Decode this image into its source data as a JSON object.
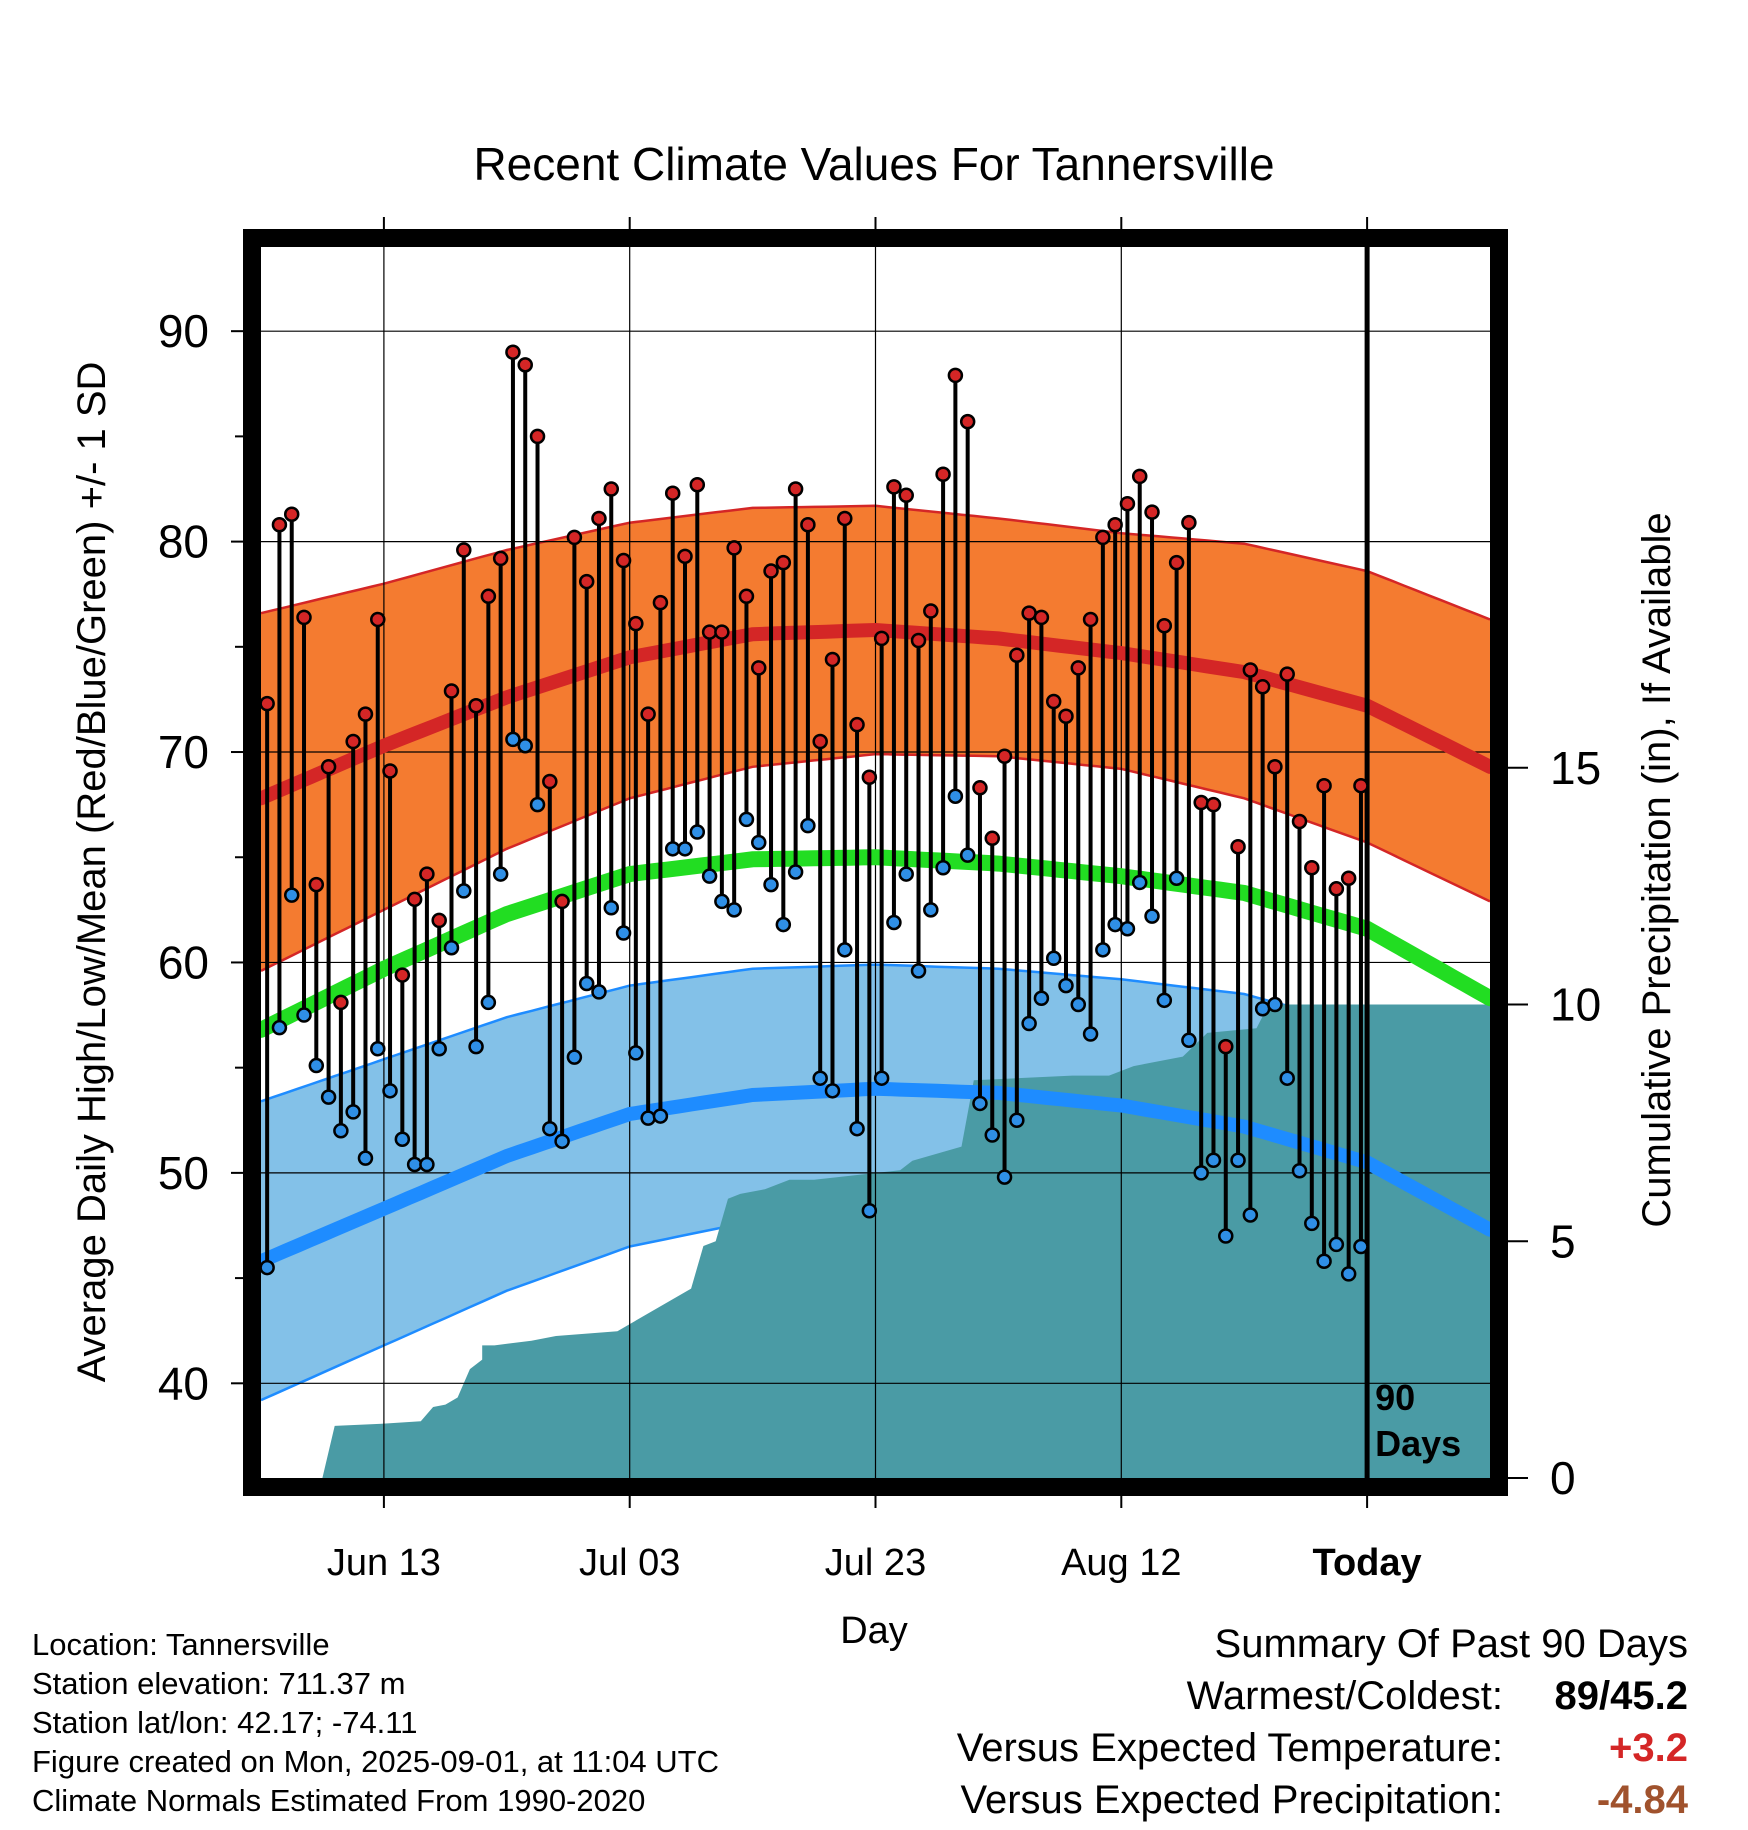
{
  "chart_data": {
    "type": "line",
    "title": "Recent Climate Values For Tannersville",
    "xlabel": "Day",
    "ylabel": "Average Daily High/Low/Mean (Red/Blue/Green) +/- 1 SD",
    "y2label": "Cumulative Precipitation (in), If Available",
    "x_tick_labels": [
      "Jun 13",
      "Jul 03",
      "Jul 23",
      "Aug 12",
      "Today"
    ],
    "y_ticks": [
      40,
      50,
      60,
      70,
      80,
      90
    ],
    "y2_ticks": [
      0,
      5,
      10,
      15
    ],
    "ylim": [
      35.5,
      94
    ],
    "y2lim": [
      0,
      26
    ],
    "today_marker_label": "90 Days",
    "grid": true,
    "colors": {
      "high_band": "#f47b30",
      "high_line": "#d42626",
      "low_band": "#83c1e8",
      "low_line": "#1e8cff",
      "mean_line": "#22dd22",
      "precip": "#4a9ba5",
      "high_dot": "#d42626",
      "low_dot": "#2f8fe6"
    },
    "x_day_range": [
      -90,
      10
    ],
    "normal_high": {
      "x": [
        -90,
        -80,
        -70,
        -60,
        -50,
        -40,
        -30,
        -20,
        -10,
        0,
        10
      ],
      "values": [
        67.8,
        70.3,
        72.6,
        74.5,
        75.6,
        75.8,
        75.4,
        74.7,
        73.8,
        72.2,
        69.3
      ]
    },
    "normal_high_upper": {
      "x": [
        -90,
        -80,
        -70,
        -60,
        -50,
        -40,
        -30,
        -20,
        -10,
        0,
        10
      ],
      "values": [
        76.6,
        78,
        79.6,
        80.9,
        81.6,
        81.7,
        81.1,
        80.4,
        79.9,
        78.6,
        76.3
      ]
    },
    "normal_high_lower": {
      "x": [
        -90,
        -80,
        -70,
        -60,
        -50,
        -40,
        -30,
        -20,
        -10,
        0,
        10
      ],
      "values": [
        59.6,
        62.5,
        65.4,
        67.8,
        69.3,
        69.9,
        69.8,
        69.2,
        67.8,
        65.7,
        62.9
      ]
    },
    "normal_mean": {
      "x": [
        -90,
        -80,
        -70,
        -60,
        -50,
        -40,
        -30,
        -20,
        -10,
        0,
        10
      ],
      "values": [
        56.8,
        59.7,
        62.3,
        64.2,
        64.9,
        65,
        64.7,
        64.1,
        63.3,
        61.6,
        58.3
      ]
    },
    "normal_low": {
      "x": [
        -90,
        -80,
        -70,
        -60,
        -50,
        -40,
        -30,
        -20,
        -10,
        0,
        10
      ],
      "values": [
        45.8,
        48.3,
        50.8,
        52.8,
        53.7,
        54,
        53.8,
        53.2,
        52.2,
        50.5,
        47.3
      ]
    },
    "normal_low_upper": {
      "x": [
        -90,
        -80,
        -70,
        -60,
        -50,
        -40,
        -30,
        -20,
        -10,
        0,
        10
      ],
      "values": [
        53.4,
        55.4,
        57.4,
        58.9,
        59.7,
        59.9,
        59.7,
        59.2,
        58.5,
        56.9,
        54.9
      ]
    },
    "normal_low_lower": {
      "x": [
        -90,
        -80,
        -70,
        -60,
        -50,
        -40,
        -30,
        -20,
        -10,
        0,
        10
      ],
      "values": [
        39.2,
        41.8,
        44.4,
        46.5,
        47.7,
        48.2,
        48.2,
        47.6,
        46.4,
        44.6,
        41.8
      ]
    },
    "daily_high": [
      72.3,
      80.8,
      81.3,
      76.4,
      63.7,
      69.3,
      58.1,
      70.5,
      71.8,
      76.3,
      69.1,
      59.4,
      63.0,
      64.2,
      62.0,
      72.9,
      79.6,
      72.2,
      77.4,
      79.2,
      89.0,
      88.4,
      85.0,
      68.6,
      62.9,
      80.2,
      78.1,
      81.1,
      82.5,
      79.1,
      76.1,
      71.8,
      77.1,
      82.3,
      79.3,
      82.7,
      75.7,
      75.7,
      79.7,
      77.4,
      74.0,
      78.6,
      79.0,
      82.5,
      80.8,
      70.5,
      74.4,
      81.1,
      71.3,
      68.8,
      75.4,
      82.6,
      82.2,
      75.3,
      76.7,
      83.2,
      87.9,
      85.7,
      68.3,
      65.9,
      69.8,
      74.6,
      76.6,
      76.4,
      72.4,
      71.7,
      74.0,
      76.3,
      80.2,
      80.8,
      81.8,
      83.1,
      81.4,
      76.0,
      79.0,
      80.9,
      67.6,
      67.5,
      56.0,
      65.5,
      73.9,
      73.1,
      69.3,
      73.7,
      66.7,
      64.5,
      68.4,
      63.5,
      64.0,
      68.4
    ],
    "daily_low": [
      45.5,
      56.9,
      63.2,
      57.5,
      55.1,
      53.6,
      52.0,
      52.9,
      50.7,
      55.9,
      53.9,
      51.6,
      50.4,
      50.4,
      55.9,
      60.7,
      63.4,
      56.0,
      58.1,
      64.2,
      70.6,
      70.3,
      67.5,
      52.1,
      51.5,
      55.5,
      59.0,
      58.6,
      62.6,
      61.4,
      55.7,
      52.6,
      52.7,
      65.4,
      65.4,
      66.2,
      64.1,
      62.9,
      62.5,
      66.8,
      65.7,
      63.7,
      61.8,
      64.3,
      66.5,
      54.5,
      53.9,
      60.6,
      52.1,
      48.2,
      54.5,
      61.9,
      64.2,
      59.6,
      62.5,
      64.5,
      67.9,
      65.1,
      53.3,
      51.8,
      49.8,
      52.5,
      57.1,
      58.3,
      60.2,
      58.9,
      58.0,
      56.6,
      60.6,
      61.8,
      61.6,
      63.8,
      62.2,
      58.2,
      64.0,
      56.3,
      50.0,
      50.6,
      47.0,
      50.6,
      48.0,
      57.8,
      58.0,
      54.5,
      50.1,
      47.6,
      45.8,
      46.6,
      45.2,
      46.5
    ],
    "cumulative_precip": {
      "x": [
        -90,
        -85,
        -84,
        -80,
        -77,
        -76,
        -75,
        -74,
        -73,
        -72,
        -72,
        -71,
        -68,
        -66,
        -61,
        -55,
        -54,
        -53,
        -52,
        -51,
        -49,
        -47,
        -45,
        -38,
        -37,
        -33,
        -32,
        -24,
        -23,
        -21,
        -19,
        -15,
        -13,
        -9,
        -8,
        -5,
        -2,
        0,
        10
      ],
      "values": [
        0,
        0,
        1.1,
        1.15,
        1.2,
        1.5,
        1.55,
        1.7,
        2.3,
        2.5,
        2.8,
        2.8,
        2.9,
        3.0,
        3.1,
        4.0,
        4.9,
        5.0,
        5.9,
        6.0,
        6.1,
        6.3,
        6.3,
        6.5,
        6.7,
        7.0,
        8.4,
        8.5,
        8.5,
        8.5,
        8.7,
        8.9,
        9.4,
        9.5,
        10.0,
        10.0,
        10.0,
        10.0,
        10.0
      ]
    }
  },
  "footer": {
    "location": "Location: Tannersville",
    "elevation": "Station elevation: 711.37 m",
    "latlon": "Station lat/lon: 42.17; -74.11",
    "created": "Figure created on Mon, 2025-09-01, at 11:04 UTC",
    "normals": "Climate Normals Estimated From 1990-2020"
  },
  "summary": {
    "title": "Summary Of Past 90 Days",
    "warmest_label": "Warmest/Coldest:",
    "warmest_value": "89/45.2",
    "temp_label": "Versus Expected Temperature:",
    "temp_value": "+3.2",
    "temp_color": "#d42626",
    "precip_label": "Versus Expected Precipitation:",
    "precip_value": "-4.84",
    "precip_color": "#a0522d"
  }
}
